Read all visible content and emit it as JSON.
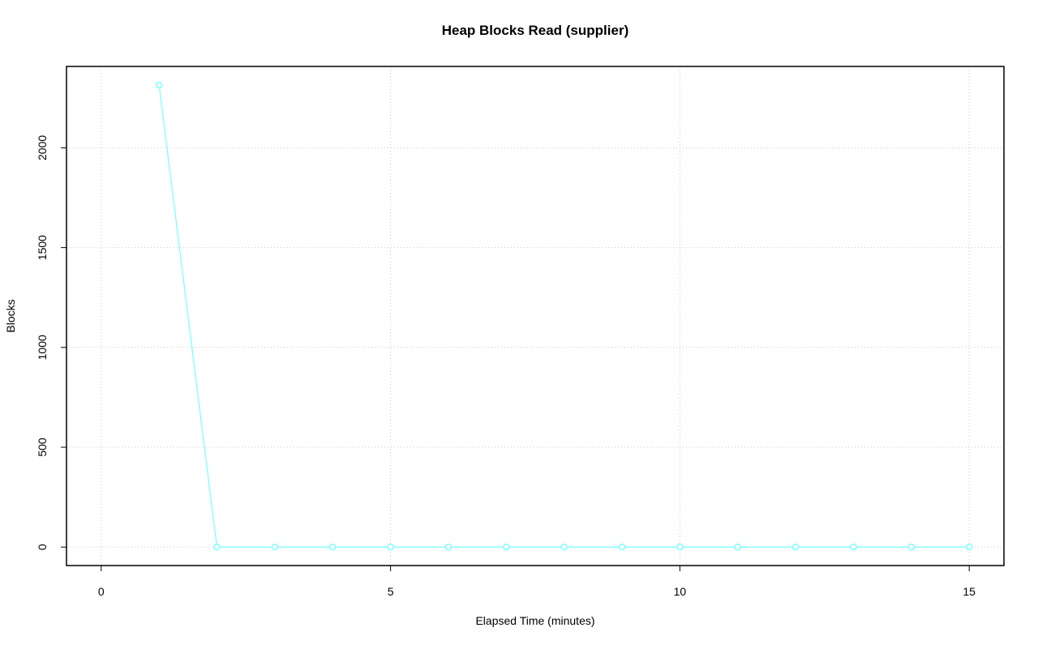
{
  "chart_data": {
    "type": "line",
    "title": "Heap Blocks Read (supplier)",
    "x_label": "Elapsed Time (minutes)",
    "y_label": "Blocks",
    "x": [
      1,
      2,
      3,
      4,
      5,
      6,
      7,
      8,
      9,
      10,
      11,
      12,
      13,
      14,
      15
    ],
    "series": [
      {
        "name": "supplier",
        "color": "#80ffff",
        "values": [
          2315,
          0,
          0,
          0,
          0,
          0,
          0,
          0,
          0,
          0,
          0,
          0,
          0,
          0,
          0
        ]
      }
    ],
    "xlim": [
      -0.6,
      15.6
    ],
    "ylim": [
      -92.6,
      2407.6
    ],
    "xticks": [
      0,
      5,
      10,
      15
    ],
    "yticks": [
      0,
      500,
      1000,
      1500,
      2000
    ],
    "grid": true
  }
}
